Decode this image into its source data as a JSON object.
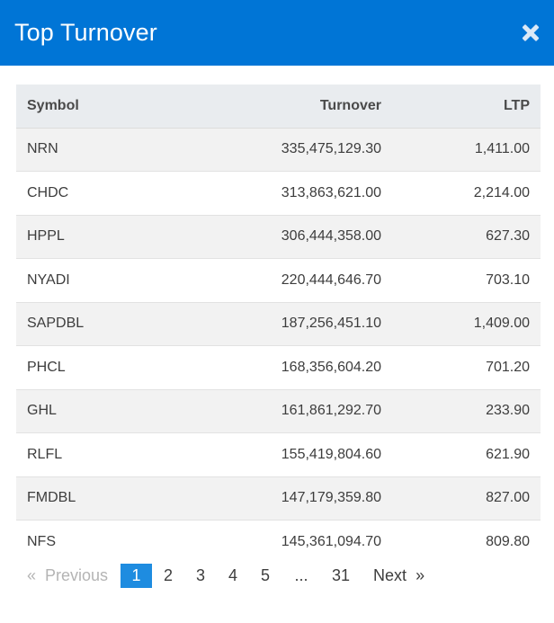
{
  "header": {
    "title": "Top Turnover",
    "close_icon": "close-icon"
  },
  "table": {
    "columns": [
      "Symbol",
      "Turnover",
      "LTP"
    ],
    "rows": [
      {
        "symbol": "NRN",
        "turnover": "335,475,129.30",
        "ltp": "1,411.00"
      },
      {
        "symbol": "CHDC",
        "turnover": "313,863,621.00",
        "ltp": "2,214.00"
      },
      {
        "symbol": "HPPL",
        "turnover": "306,444,358.00",
        "ltp": "627.30"
      },
      {
        "symbol": "NYADI",
        "turnover": "220,444,646.70",
        "ltp": "703.10"
      },
      {
        "symbol": "SAPDBL",
        "turnover": "187,256,451.10",
        "ltp": "1,409.00"
      },
      {
        "symbol": "PHCL",
        "turnover": "168,356,604.20",
        "ltp": "701.20"
      },
      {
        "symbol": "GHL",
        "turnover": "161,861,292.70",
        "ltp": "233.90"
      },
      {
        "symbol": "RLFL",
        "turnover": "155,419,804.60",
        "ltp": "621.90"
      },
      {
        "symbol": "FMDBL",
        "turnover": "147,179,359.80",
        "ltp": "827.00"
      },
      {
        "symbol": "NFS",
        "turnover": "145,361,094.70",
        "ltp": "809.80"
      }
    ]
  },
  "pagination": {
    "prev_arrow": "«",
    "prev_label": "Previous",
    "pages": [
      "1",
      "2",
      "3",
      "4",
      "5"
    ],
    "ellipsis": "...",
    "last_page": "31",
    "next_label": "Next",
    "next_arrow": "»"
  }
}
